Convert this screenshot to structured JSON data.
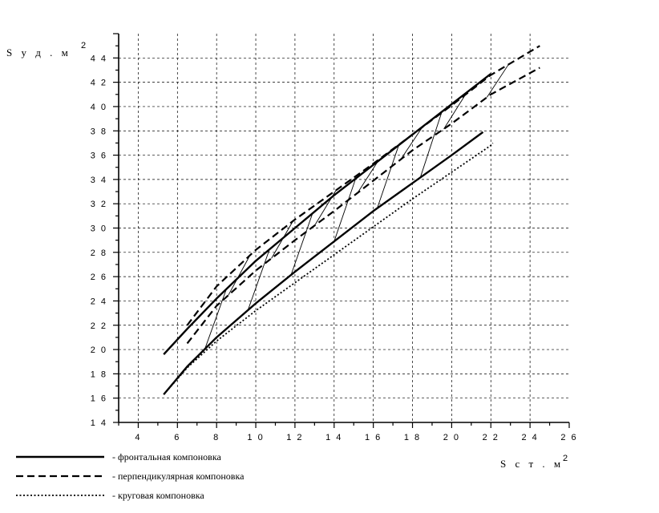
{
  "chart_data": {
    "type": "line",
    "title": "",
    "xlabel": "S с т . м",
    "xlabel_superscript": "2",
    "ylabel": "S у д . м",
    "ylabel_superscript": "2",
    "xlim": [
      3,
      26
    ],
    "ylim": [
      1.4,
      4.6
    ],
    "xticks": [
      4,
      6,
      8,
      10,
      12,
      14,
      16,
      18,
      20,
      22,
      24,
      26
    ],
    "xtick_labels": [
      "4",
      "6",
      "8",
      "1 0",
      "1 2",
      "1 4",
      "1 6",
      "1 8",
      "2 0",
      "2 2",
      "2 4",
      "2 6"
    ],
    "yticks": [
      1.4,
      1.6,
      1.8,
      2.0,
      2.2,
      2.4,
      2.6,
      2.8,
      3.0,
      3.2,
      3.4,
      3.6,
      3.8,
      4.0,
      4.2,
      4.4
    ],
    "ytick_labels": [
      "1 4",
      "1 6",
      "1 8",
      "2 0",
      "2 2",
      "2 4",
      "2 6",
      "2 8",
      "3 0",
      "3 2",
      "3 4",
      "3 6",
      "3 8",
      "4 0",
      "4 2",
      "4 4"
    ],
    "grid": true,
    "legend_position": "bottom-left",
    "series": [
      {
        "name": "- фронтальная компоновка",
        "style": "solid",
        "upper": [
          [
            5.3,
            1.96
          ],
          [
            6.5,
            2.17
          ],
          [
            8,
            2.42
          ],
          [
            10,
            2.73
          ],
          [
            12,
            3.0
          ],
          [
            14,
            3.27
          ],
          [
            16,
            3.52
          ],
          [
            18,
            3.77
          ],
          [
            20,
            4.02
          ],
          [
            22,
            4.27
          ]
        ],
        "lower": [
          [
            5.3,
            1.63
          ],
          [
            6.5,
            1.86
          ],
          [
            8,
            2.1
          ],
          [
            10,
            2.38
          ],
          [
            12,
            2.64
          ],
          [
            14,
            2.89
          ],
          [
            16,
            3.14
          ],
          [
            18,
            3.37
          ],
          [
            20,
            3.6
          ],
          [
            21.6,
            3.79
          ]
        ]
      },
      {
        "name": "- перпендикулярная компоновка",
        "style": "dashed",
        "upper": [
          [
            6.5,
            2.2
          ],
          [
            8,
            2.52
          ],
          [
            10,
            2.82
          ],
          [
            12,
            3.07
          ],
          [
            14,
            3.3
          ],
          [
            16,
            3.53
          ],
          [
            18,
            3.77
          ],
          [
            20,
            4.01
          ],
          [
            22,
            4.26
          ],
          [
            24.5,
            4.5
          ]
        ],
        "lower": [
          [
            6.5,
            2.05
          ],
          [
            8,
            2.36
          ],
          [
            10,
            2.65
          ],
          [
            12,
            2.9
          ],
          [
            14,
            3.14
          ],
          [
            16,
            3.39
          ],
          [
            18,
            3.64
          ],
          [
            20,
            3.86
          ],
          [
            22,
            4.1
          ],
          [
            24.5,
            4.32
          ]
        ]
      },
      {
        "name": "- круговая компоновка",
        "style": "dotted",
        "upper": [],
        "lower": [
          [
            5.3,
            1.63
          ],
          [
            6.5,
            1.85
          ],
          [
            8,
            2.07
          ],
          [
            10,
            2.32
          ],
          [
            12,
            2.55
          ],
          [
            14,
            2.78
          ],
          [
            16,
            3.01
          ],
          [
            18,
            3.24
          ],
          [
            20,
            3.46
          ],
          [
            22,
            3.68
          ],
          [
            22.1,
            3.7
          ]
        ]
      }
    ]
  }
}
